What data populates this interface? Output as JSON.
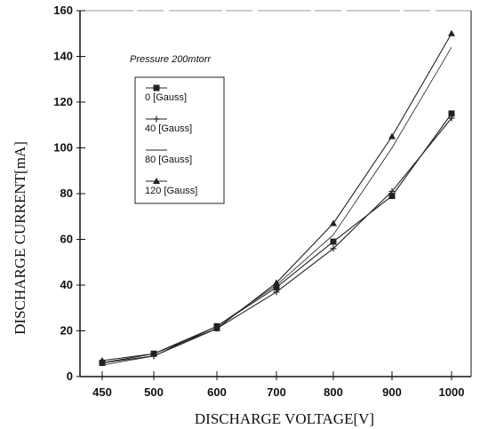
{
  "chart_data": {
    "type": "line",
    "title": "",
    "xlabel": "DISCHARGE VOLTAGE[V]",
    "ylabel": "DISCHARGE CURRENT[mA]",
    "annotation": "Pressure  200mtorr",
    "categories": [
      "450",
      "500",
      "600",
      "700",
      "800",
      "900",
      "1000"
    ],
    "ylim": [
      0,
      160
    ],
    "yticks": [
      0,
      20,
      40,
      60,
      80,
      100,
      120,
      140,
      160
    ],
    "grid": false,
    "legend_position": "upper-left",
    "series": [
      {
        "name": "0 [Gauss]",
        "marker": "square",
        "values": [
          6,
          10,
          22,
          39,
          59,
          79,
          115
        ]
      },
      {
        "name": "40 [Gauss]",
        "marker": "plus",
        "values": [
          6,
          9,
          21,
          37,
          56,
          81,
          113
        ]
      },
      {
        "name": "80 [Gauss]",
        "marker": "none",
        "values": [
          5,
          9,
          22,
          40,
          62,
          100,
          144
        ]
      },
      {
        "name": "120 [Gauss]",
        "marker": "triangle",
        "values": [
          7,
          10,
          21,
          41,
          67,
          105,
          150
        ]
      }
    ],
    "colors": {
      "line": "#222222",
      "axis": "#111111"
    }
  }
}
